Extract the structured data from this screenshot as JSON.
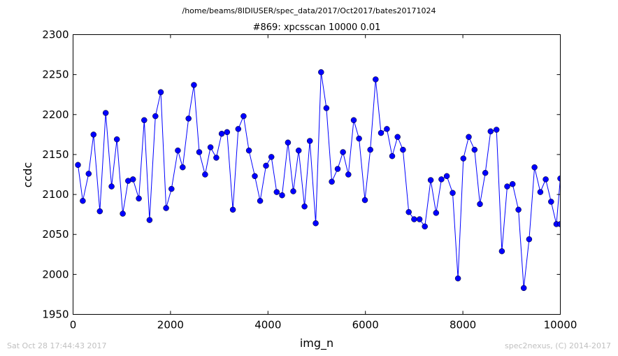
{
  "suptitle": "/home/beams/8IDIUSER/spec_data/2017/Oct2017/bates20171024",
  "footer": {
    "timestamp": "Sat Oct 28 17:44:43 2017",
    "credit": "spec2nexus, (C) 2014-2017"
  },
  "chart_data": {
    "type": "line",
    "title": "#869: xpcsscan 10000 0.01",
    "xlabel": "img_n",
    "ylabel": "ccdc",
    "xlim": [
      0,
      10000
    ],
    "ylim": [
      1950,
      2300
    ],
    "xticks": [
      0,
      2000,
      4000,
      6000,
      8000,
      10000
    ],
    "yticks": [
      1950,
      2000,
      2050,
      2100,
      2150,
      2200,
      2250,
      2300
    ],
    "grid": false,
    "marker": "circle",
    "color": "#0000ff",
    "x": [
      100,
      200,
      320,
      420,
      550,
      670,
      790,
      900,
      1020,
      1130,
      1230,
      1350,
      1460,
      1570,
      1690,
      1800,
      1910,
      2020,
      2150,
      2250,
      2370,
      2480,
      2590,
      2710,
      2820,
      2940,
      3050,
      3160,
      3280,
      3390,
      3500,
      3610,
      3730,
      3840,
      3960,
      4070,
      4180,
      4290,
      4410,
      4520,
      4630,
      4750,
      4860,
      4980,
      5090,
      5200,
      5310,
      5430,
      5540,
      5650,
      5760,
      5870,
      5990,
      6100,
      6210,
      6320,
      6440,
      6550,
      6660,
      6770,
      6890,
      7000,
      7110,
      7220,
      7340,
      7450,
      7560,
      7670,
      7790,
      7900,
      8010,
      8120,
      8240,
      8350,
      8460,
      8570,
      8690,
      8800,
      8910,
      9020,
      9140,
      9250,
      9360,
      9470,
      9590,
      9700,
      9810,
      9920,
      10000,
      10000
    ],
    "y": [
      2137,
      2092,
      2126,
      2175,
      2079,
      2202,
      2110,
      2169,
      2076,
      2117,
      2119,
      2095,
      2193,
      2068,
      2198,
      2228,
      2083,
      2107,
      2155,
      2134,
      2195,
      2237,
      2153,
      2125,
      2159,
      2146,
      2176,
      2178,
      2081,
      2182,
      2198,
      2155,
      2123,
      2092,
      2136,
      2147,
      2103,
      2099,
      2165,
      2104,
      2155,
      2085,
      2167,
      2064,
      2253,
      2208,
      2116,
      2132,
      2153,
      2125,
      2193,
      2170,
      2093,
      2156,
      2244,
      2177,
      2182,
      2148,
      2172,
      2156,
      2078,
      2069,
      2069,
      2060,
      2118,
      2077,
      2119,
      2123,
      2102,
      1995,
      2145,
      2172,
      2156,
      2088,
      2127,
      2179,
      2181,
      2029,
      2110,
      2113,
      2081,
      1983,
      2044,
      2134,
      2103,
      2119,
      2091,
      2063,
      2120,
      2063
    ]
  }
}
